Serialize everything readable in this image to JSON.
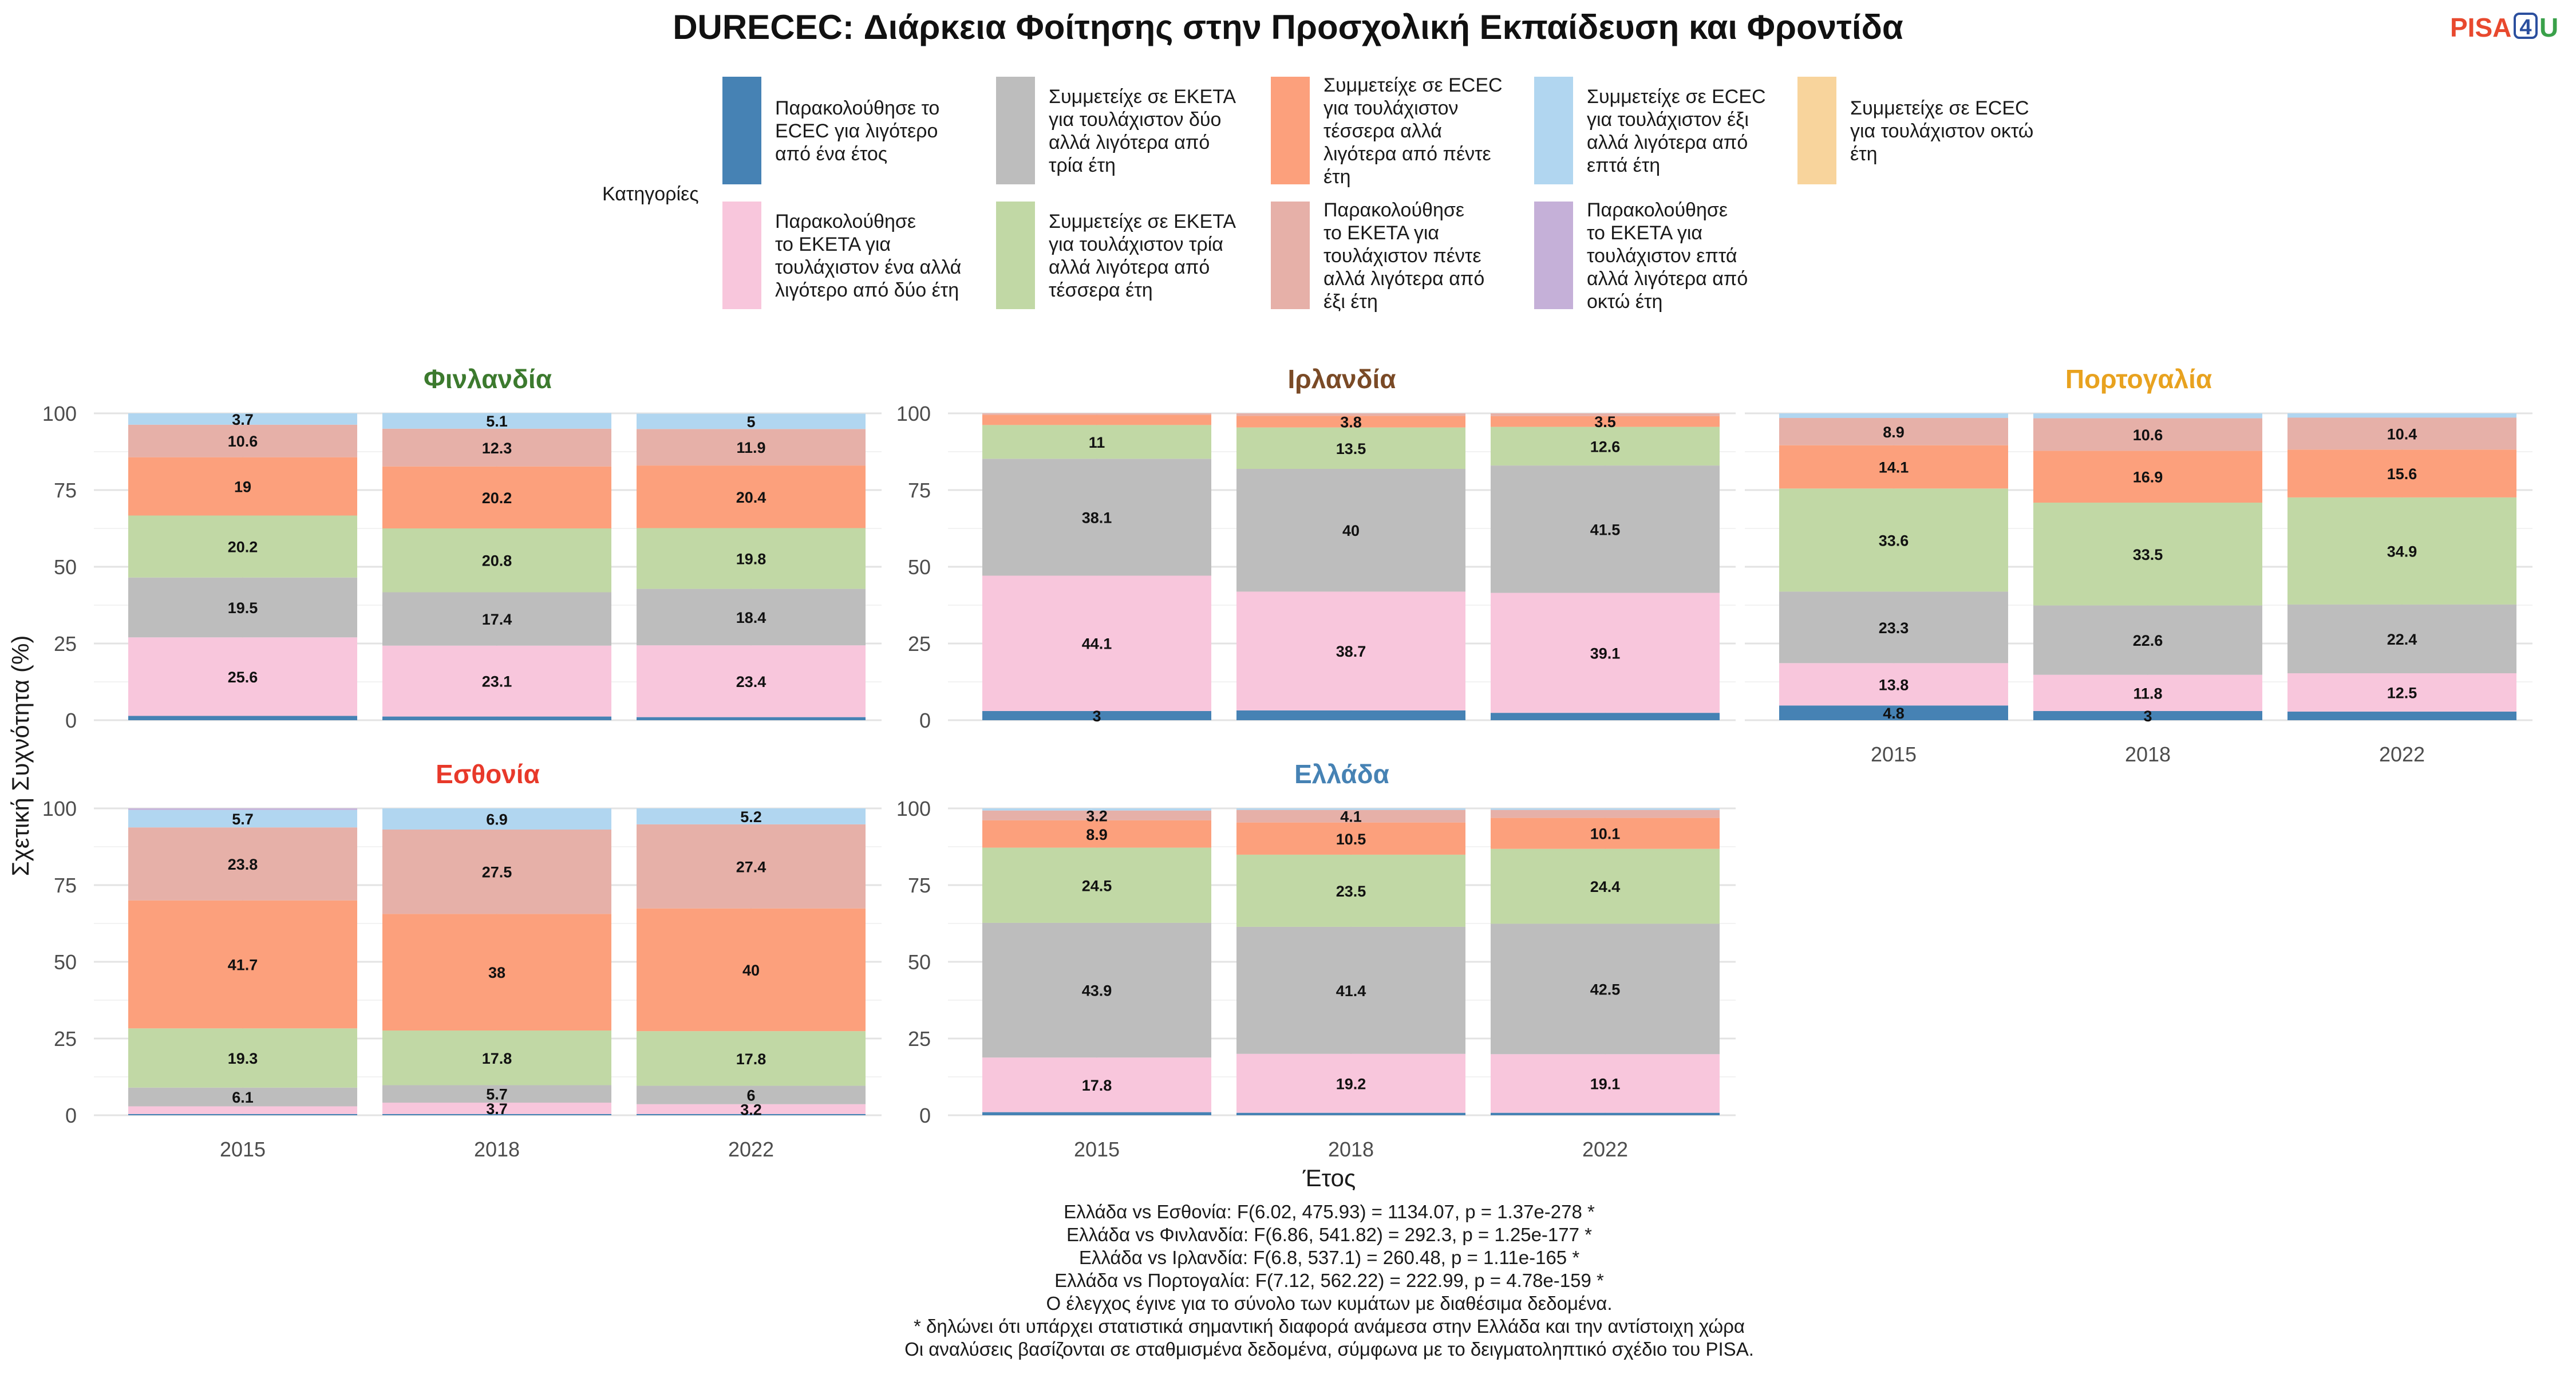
{
  "title": "DURECEC: Διάρκεια Φοίτησης στην Προσχολική Εκπαίδευση και Φροντίδα",
  "logo": {
    "text_a": "PISA",
    "text_b": "4",
    "text_c": "U",
    "color_a": "#e8492e",
    "color_b": "#2b4f9e",
    "color_c": "#3aa14a"
  },
  "legend": {
    "title": "Κατηγορίες",
    "items": [
      {
        "key": "c1",
        "color": "#4682b4",
        "lines": [
          "Παρακολούθησε το",
          "ECEC για λιγότερο",
          "από ένα έτος"
        ]
      },
      {
        "key": "c3",
        "color": "#bdbdbd",
        "lines": [
          "Συμμετείχε σε ΕΚΕΤΑ",
          "για τουλάχιστον δύο",
          "αλλά λιγότερα από",
          "τρία έτη"
        ]
      },
      {
        "key": "c5",
        "color": "#fca07c",
        "lines": [
          "Συμμετείχε σε ECEC",
          "για τουλάχιστον",
          "τέσσερα αλλά",
          "λιγότερα από πέντε",
          "έτη"
        ]
      },
      {
        "key": "c7",
        "color": "#b1d6f0",
        "lines": [
          "Συμμετείχε σε ECEC",
          "για τουλάχιστον έξι",
          "αλλά λιγότερα από",
          "επτά έτη"
        ]
      },
      {
        "key": "c9",
        "color": "#f8d49c",
        "lines": [
          "Συμμετείχε σε ECEC",
          "για τουλάχιστον οκτώ",
          "έτη"
        ]
      },
      {
        "key": "c2",
        "color": "#f8c6dc",
        "lines": [
          "Παρακολούθησε",
          "το ΕΚΕΤΑ για",
          "τουλάχιστον ένα αλλά",
          "λιγότερο από δύο έτη"
        ]
      },
      {
        "key": "c4",
        "color": "#c1d8a5",
        "lines": [
          "Συμμετείχε σε ΕΚΕΤΑ",
          "για τουλάχιστον τρία",
          "αλλά λιγότερα από",
          "τέσσερα έτη"
        ]
      },
      {
        "key": "c6",
        "color": "#e6b0a8",
        "lines": [
          "Παρακολούθησε",
          "το ΕΚΕΤΑ για",
          "τουλάχιστον πέντε",
          "αλλά λιγότερα από",
          "έξι έτη"
        ]
      },
      {
        "key": "c8",
        "color": "#c5b0d8",
        "lines": [
          "Παρακολούθησε",
          "το ΕΚΕΤΑ για",
          "τουλάχιστον επτά",
          "αλλά λιγότερα από",
          "οκτώ έτη"
        ]
      }
    ]
  },
  "ylabel": "Σχετική Συχνότητα (%)",
  "xlabel": "Έτος",
  "notes": [
    "Ελλάδα vs Εσθονία: F(6.02, 475.93) = 1134.07, p = 1.37e-278 *",
    "Ελλάδα vs Φινλανδία: F(6.86, 541.82) = 292.3, p = 1.25e-177 *",
    "Ελλάδα vs Ιρλανδία: F(6.8, 537.1) = 260.48, p = 1.11e-165 *",
    "Ελλάδα vs Πορτογαλία: F(7.12, 562.22) = 222.99, p = 4.78e-159 *",
    "Ο έλεγχος έγινε για το σύνολο των κυμάτων με διαθέσιμα δεδομένα.",
    "* δηλώνει ότι υπάρχει στατιστικά σημαντική διαφορά ανάμεσα στην Ελλάδα και την αντίστοιχη χώρα",
    "Οι αναλύσεις βασίζονται σε σταθμισμένα δεδομένα, σύμφωνα με το δειγματοληπτικό σχέδιο του PISA."
  ],
  "chart_data": {
    "type": "bar",
    "stacked": true,
    "categories": [
      "2015",
      "2018",
      "2022"
    ],
    "ylim": [
      0,
      100
    ],
    "yticks": [
      0,
      25,
      50,
      75,
      100
    ],
    "stack_order": [
      "c1",
      "c2",
      "c3",
      "c4",
      "c5",
      "c6",
      "c7",
      "c8",
      "c9"
    ],
    "panels": [
      {
        "name": "Φινλανδία",
        "color": "#3c7a2e",
        "row": 0,
        "col": 0,
        "show_x": false,
        "bars": [
          {
            "c1": 1.4,
            "c2": 25.6,
            "c3": 19.5,
            "c4": 20.2,
            "c5": 19,
            "c6": 10.6,
            "c7": 3.7
          },
          {
            "c1": 1.2,
            "c2": 23.1,
            "c3": 17.4,
            "c4": 20.8,
            "c5": 20.2,
            "c6": 12.3,
            "c7": 5.1
          },
          {
            "c1": 1.0,
            "c2": 23.4,
            "c3": 18.4,
            "c4": 19.8,
            "c5": 20.4,
            "c6": 11.9,
            "c7": 5
          }
        ]
      },
      {
        "name": "Ιρλανδία",
        "color": "#7a4a26",
        "row": 0,
        "col": 1,
        "show_x": false,
        "bars": [
          {
            "c1": 3,
            "c2": 44.1,
            "c3": 38.1,
            "c4": 11,
            "c5": 3.3,
            "c6": 0.5
          },
          {
            "c1": 3.2,
            "c2": 38.7,
            "c3": 40,
            "c4": 13.5,
            "c5": 3.8,
            "c6": 0.8
          },
          {
            "c1": 2.4,
            "c2": 39.1,
            "c3": 41.5,
            "c4": 12.6,
            "c5": 3.5,
            "c6": 0.9
          }
        ]
      },
      {
        "name": "Πορτογαλία",
        "color": "#e8a21f",
        "row": 0,
        "col": 2,
        "show_x": true,
        "bars": [
          {
            "c1": 4.8,
            "c2": 13.8,
            "c3": 23.3,
            "c4": 33.6,
            "c5": 14.1,
            "c6": 8.9,
            "c7": 1.5
          },
          {
            "c1": 3,
            "c2": 11.8,
            "c3": 22.6,
            "c4": 33.5,
            "c5": 16.9,
            "c6": 10.6,
            "c7": 1.6
          },
          {
            "c1": 2.8,
            "c2": 12.5,
            "c3": 22.4,
            "c4": 34.9,
            "c5": 15.6,
            "c6": 10.4,
            "c7": 1.4
          }
        ]
      },
      {
        "name": "Εσθονία",
        "color": "#e8392a",
        "row": 1,
        "col": 0,
        "show_x": true,
        "bars": [
          {
            "c1": 0.4,
            "c2": 2.5,
            "c3": 6.1,
            "c4": 19.3,
            "c5": 41.7,
            "c6": 23.8,
            "c7": 5.7,
            "c8": 0.5
          },
          {
            "c1": 0.4,
            "c2": 3.7,
            "c3": 5.7,
            "c4": 17.8,
            "c5": 38,
            "c6": 27.5,
            "c7": 6.9
          },
          {
            "c1": 0.4,
            "c2": 3.2,
            "c3": 6,
            "c4": 17.8,
            "c5": 40,
            "c6": 27.4,
            "c7": 5.2
          }
        ]
      },
      {
        "name": "Ελλάδα",
        "color": "#4682b4",
        "row": 1,
        "col": 1,
        "show_x": true,
        "bars": [
          {
            "c1": 1.0,
            "c2": 17.8,
            "c3": 43.9,
            "c4": 24.5,
            "c5": 8.9,
            "c6": 3.2,
            "c7": 0.7
          },
          {
            "c1": 0.8,
            "c2": 19.2,
            "c3": 41.4,
            "c4": 23.5,
            "c5": 10.5,
            "c6": 4.1,
            "c7": 0.5
          },
          {
            "c1": 0.8,
            "c2": 19.1,
            "c3": 42.5,
            "c4": 24.4,
            "c5": 10.1,
            "c6": 2.6,
            "c7": 0.5
          }
        ]
      }
    ],
    "data_labels": [
      {
        "panel": 0,
        "bar": 0,
        "values": {
          "c2": "25.6",
          "c3": "19.5",
          "c4": "20.2",
          "c5": "19",
          "c6": "10.6",
          "c7": "3.7"
        }
      },
      {
        "panel": 0,
        "bar": 1,
        "values": {
          "c2": "23.1",
          "c3": "17.4",
          "c4": "20.8",
          "c5": "20.2",
          "c6": "12.3",
          "c7": "5.1"
        }
      },
      {
        "panel": 0,
        "bar": 2,
        "values": {
          "c2": "23.4",
          "c3": "18.4",
          "c4": "19.8",
          "c5": "20.4",
          "c6": "11.9",
          "c7": "5"
        }
      },
      {
        "panel": 1,
        "bar": 0,
        "values": {
          "c1": "3",
          "c2": "44.1",
          "c3": "38.1",
          "c4": "11"
        }
      },
      {
        "panel": 1,
        "bar": 1,
        "values": {
          "c2": "38.7",
          "c3": "40",
          "c4": "13.5",
          "c5": "3.8"
        }
      },
      {
        "panel": 1,
        "bar": 2,
        "values": {
          "c2": "39.1",
          "c3": "41.5",
          "c4": "12.6",
          "c5": "3.5"
        }
      },
      {
        "panel": 2,
        "bar": 0,
        "values": {
          "c1": "4.8",
          "c2": "13.8",
          "c3": "23.3",
          "c4": "33.6",
          "c5": "14.1",
          "c6": "8.9"
        }
      },
      {
        "panel": 2,
        "bar": 1,
        "values": {
          "c1": "3",
          "c2": "11.8",
          "c3": "22.6",
          "c4": "33.5",
          "c5": "16.9",
          "c6": "10.6"
        }
      },
      {
        "panel": 2,
        "bar": 2,
        "values": {
          "c2": "12.5",
          "c3": "22.4",
          "c4": "34.9",
          "c5": "15.6",
          "c6": "10.4"
        }
      },
      {
        "panel": 3,
        "bar": 0,
        "values": {
          "c3": "6.1",
          "c4": "19.3",
          "c5": "41.7",
          "c6": "23.8",
          "c7": "5.7"
        }
      },
      {
        "panel": 3,
        "bar": 1,
        "values": {
          "c2": "3.7",
          "c3": "5.7",
          "c4": "17.8",
          "c5": "38",
          "c6": "27.5",
          "c7": "6.9"
        }
      },
      {
        "panel": 3,
        "bar": 2,
        "values": {
          "c2": "3.2",
          "c3": "6",
          "c4": "17.8",
          "c5": "40",
          "c6": "27.4",
          "c7": "5.2"
        }
      },
      {
        "panel": 4,
        "bar": 0,
        "values": {
          "c2": "17.8",
          "c3": "43.9",
          "c4": "24.5",
          "c5": "8.9",
          "c6": "3.2"
        }
      },
      {
        "panel": 4,
        "bar": 1,
        "values": {
          "c2": "19.2",
          "c3": "41.4",
          "c4": "23.5",
          "c5": "10.5",
          "c6": "4.1"
        }
      },
      {
        "panel": 4,
        "bar": 2,
        "values": {
          "c2": "19.1",
          "c3": "42.5",
          "c4": "24.4",
          "c5": "10.1"
        }
      }
    ]
  }
}
